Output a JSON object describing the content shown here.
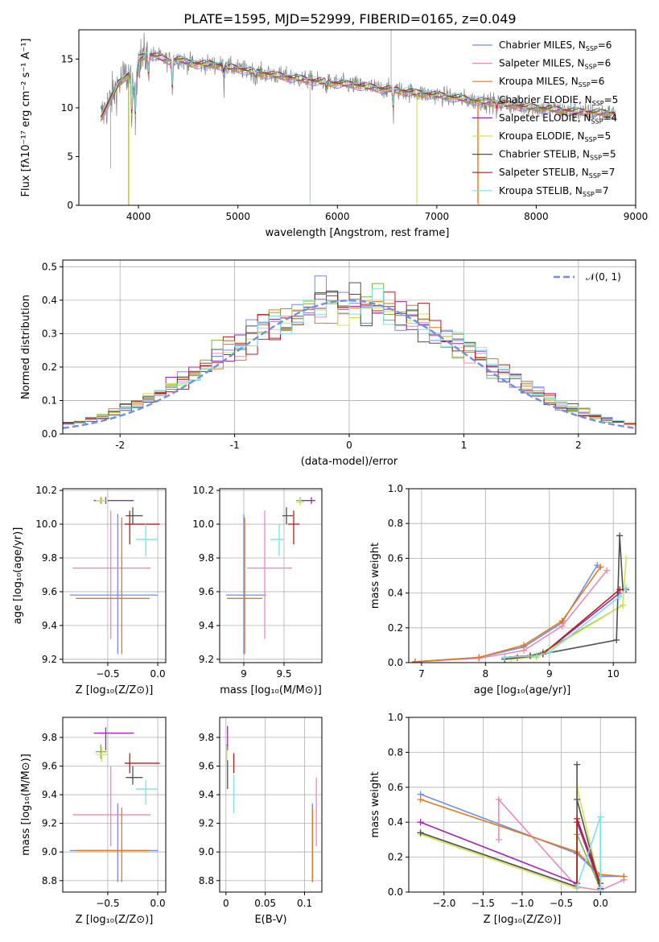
{
  "title": "PLATE=1595, MJD=52999, FIBERID=0165, z=0.049",
  "models": [
    {
      "name": "Chabrier MILES",
      "nssp": "6",
      "color": "#6f8fe0"
    },
    {
      "name": "Salpeter MILES",
      "nssp": "6",
      "color": "#e88bb8"
    },
    {
      "name": "Kroupa MILES",
      "nssp": "6",
      "color": "#e07a1f"
    },
    {
      "name": "Chabrier ELODIE",
      "nssp": "5",
      "color": "#7cb342"
    },
    {
      "name": "Salpeter ELODIE",
      "nssp": "4",
      "color": "#9c27b0"
    },
    {
      "name": "Kroupa ELODIE",
      "nssp": "5",
      "color": "#d4e157"
    },
    {
      "name": "Chabrier STELIB",
      "nssp": "5",
      "color": "#505050"
    },
    {
      "name": "Salpeter STELIB",
      "nssp": "7",
      "color": "#b71c1c"
    },
    {
      "name": "Kroupa STELIB",
      "nssp": "7",
      "color": "#80deea"
    }
  ],
  "chart_data": [
    {
      "id": "spectrum",
      "type": "line",
      "xlabel": "wavelength [Angstrom, rest frame]",
      "ylabel": "Flux [fλ10⁻¹⁷ erg cm⁻² s⁻¹ A⁻¹]",
      "xlim": [
        3400,
        9000
      ],
      "ylim": [
        0,
        18
      ],
      "xticks": [
        4000,
        5000,
        6000,
        7000,
        8000,
        9000
      ],
      "yticks": [
        0,
        5,
        10,
        15
      ],
      "legend_position": "upper-right",
      "data_color": "#808080",
      "continuum": {
        "x": [
          3620,
          3700,
          3800,
          3900,
          3960,
          4000,
          4100,
          4200,
          4300,
          4400,
          4500,
          4600,
          4800,
          5000,
          5200,
          5400,
          5600,
          5800,
          6000,
          6200,
          6400,
          6600,
          6800,
          7000,
          7200,
          7400,
          7600,
          7800,
          8000,
          8200,
          8400,
          8600,
          8800
        ],
        "y": [
          9.0,
          10.5,
          12.5,
          13.5,
          11.5,
          15.0,
          15.5,
          15.2,
          14.8,
          15.0,
          14.6,
          14.5,
          14.4,
          14.0,
          13.6,
          13.3,
          13.0,
          12.7,
          12.5,
          12.3,
          12.0,
          11.8,
          11.5,
          11.3,
          11.0,
          10.7,
          10.5,
          10.2,
          10.0,
          9.8,
          9.6,
          9.5,
          9.4
        ]
      }
    },
    {
      "id": "residuals",
      "type": "histogram",
      "xlabel": "(data-model)/error",
      "ylabel": "Normed distribution",
      "xlim": [
        -2.5,
        2.5
      ],
      "ylim": [
        0,
        0.52
      ],
      "xticks": [
        -2,
        -1,
        0,
        1,
        2
      ],
      "yticks": [
        0.0,
        0.1,
        0.2,
        0.3,
        0.4,
        0.5
      ],
      "bin_width": 0.1,
      "bin_start": -2.5,
      "reference": {
        "label": "𝒩(0, 1)",
        "color": "#6f8fe0"
      }
    },
    {
      "id": "age-vs-Z",
      "type": "errorbar",
      "xlabel": "Z [log₁₀(Z/Z⊙)]",
      "ylabel": "age  [log₁₀(age/yr)]",
      "xlim": [
        -0.95,
        0.08
      ],
      "ylim": [
        9.18,
        10.21
      ],
      "xticks": [
        -0.5,
        0.0
      ],
      "xticklabels": [
        "−0.5",
        "0.0"
      ],
      "yticks": [
        9.2,
        9.4,
        9.6,
        9.8,
        10.0,
        10.2
      ],
      "points": [
        {
          "model": 0,
          "x": -0.4,
          "xerr": [
            0.48,
            0.4
          ],
          "y": 9.58,
          "yerr": [
            0.35,
            0.48
          ]
        },
        {
          "model": 1,
          "x": -0.47,
          "xerr": [
            0.38,
            0.4
          ],
          "y": 9.74,
          "yerr": [
            0.42,
            0.34
          ]
        },
        {
          "model": 2,
          "x": -0.36,
          "xerr": [
            0.46,
            0.28
          ],
          "y": 9.56,
          "yerr": [
            0.33,
            0.48
          ]
        },
        {
          "model": 3,
          "x": -0.57,
          "xerr": [
            0.05,
            0.06
          ],
          "y": 10.14,
          "yerr": [
            0.02,
            0.02
          ]
        },
        {
          "model": 4,
          "x": -0.52,
          "xerr": [
            0.12,
            0.28
          ],
          "y": 10.14,
          "yerr": [
            0.02,
            0.02
          ]
        },
        {
          "model": 5,
          "x": -0.56,
          "xerr": [
            0.06,
            0.06
          ],
          "y": 10.14,
          "yerr": [
            0.02,
            0.02
          ]
        },
        {
          "model": 6,
          "x": -0.25,
          "xerr": [
            0.07,
            0.1
          ],
          "y": 10.05,
          "yerr": [
            0.05,
            0.05
          ]
        },
        {
          "model": 7,
          "x": -0.28,
          "xerr": [
            0.05,
            0.3
          ],
          "y": 10.0,
          "yerr": [
            0.12,
            0.08
          ]
        },
        {
          "model": 8,
          "x": -0.12,
          "xerr": [
            0.1,
            0.12
          ],
          "y": 9.91,
          "yerr": [
            0.1,
            0.09
          ]
        }
      ]
    },
    {
      "id": "age-vs-mass",
      "type": "errorbar",
      "xlabel": "mass [log₁₀(M/M⊙)]",
      "ylabel": "",
      "xlim": [
        8.7,
        9.97
      ],
      "ylim": [
        9.18,
        10.21
      ],
      "xticks": [
        9.0,
        9.5
      ],
      "yticks": [
        9.2,
        9.4,
        9.6,
        9.8,
        10.0,
        10.2
      ],
      "points": [
        {
          "model": 0,
          "x": 9.0,
          "xerr": [
            0.22,
            0.28
          ],
          "y": 9.58,
          "yerr": [
            0.35,
            0.48
          ]
        },
        {
          "model": 1,
          "x": 9.26,
          "xerr": [
            0.22,
            0.34
          ],
          "y": 9.74,
          "yerr": [
            0.42,
            0.34
          ]
        },
        {
          "model": 2,
          "x": 9.01,
          "xerr": [
            0.22,
            0.22
          ],
          "y": 9.56,
          "yerr": [
            0.33,
            0.48
          ]
        },
        {
          "model": 3,
          "x": 9.7,
          "xerr": [
            0.05,
            0.05
          ],
          "y": 10.14,
          "yerr": [
            0.02,
            0.02
          ]
        },
        {
          "model": 4,
          "x": 9.84,
          "xerr": [
            0.12,
            0.05
          ],
          "y": 10.14,
          "yerr": [
            0.02,
            0.02
          ]
        },
        {
          "model": 5,
          "x": 9.7,
          "xerr": [
            0.05,
            0.05
          ],
          "y": 10.13,
          "yerr": [
            0.02,
            0.02
          ]
        },
        {
          "model": 6,
          "x": 9.53,
          "xerr": [
            0.05,
            0.08
          ],
          "y": 10.05,
          "yerr": [
            0.05,
            0.05
          ]
        },
        {
          "model": 7,
          "x": 9.62,
          "xerr": [
            0.07,
            0.07
          ],
          "y": 10.0,
          "yerr": [
            0.12,
            0.08
          ]
        },
        {
          "model": 8,
          "x": 9.44,
          "xerr": [
            0.11,
            0.06
          ],
          "y": 9.91,
          "yerr": [
            0.1,
            0.09
          ]
        }
      ]
    },
    {
      "id": "weight-vs-age",
      "type": "line",
      "xlabel": "age  [log₁₀(age/yr)]",
      "ylabel": "mass weight",
      "xlim": [
        6.8,
        10.35
      ],
      "ylim": [
        0.0,
        1.0
      ],
      "xticks": [
        7,
        8,
        9,
        10
      ],
      "yticks": [
        0.0,
        0.2,
        0.4,
        0.6,
        0.8,
        1.0
      ],
      "series": [
        {
          "model": 0,
          "x": [
            6.9,
            7.9,
            8.6,
            9.2,
            9.75
          ],
          "y": [
            0.005,
            0.03,
            0.09,
            0.23,
            0.56
          ]
        },
        {
          "model": 1,
          "x": [
            6.9,
            7.9,
            8.6,
            9.2,
            9.9
          ],
          "y": [
            0.005,
            0.025,
            0.07,
            0.21,
            0.53
          ]
        },
        {
          "model": 2,
          "x": [
            6.9,
            7.9,
            8.6,
            9.2,
            9.8
          ],
          "y": [
            0.005,
            0.03,
            0.1,
            0.24,
            0.55
          ]
        },
        {
          "model": 3,
          "x": [
            8.3,
            8.7,
            8.9,
            10.15
          ],
          "y": [
            0.03,
            0.04,
            0.06,
            0.33
          ]
        },
        {
          "model": 4,
          "x": [
            8.5,
            8.9,
            10.1
          ],
          "y": [
            0.03,
            0.05,
            0.4
          ]
        },
        {
          "model": 5,
          "x": [
            8.4,
            8.8,
            10.15,
            10.2
          ],
          "y": [
            0.02,
            0.03,
            0.33,
            0.6
          ]
        },
        {
          "model": 6,
          "x": [
            8.3,
            8.8,
            8.9,
            10.05,
            10.1,
            10.15
          ],
          "y": [
            0.02,
            0.04,
            0.05,
            0.13,
            0.73,
            0.42
          ]
        },
        {
          "model": 7,
          "x": [
            8.3,
            8.7,
            8.9,
            10.1,
            10.2
          ],
          "y": [
            0.03,
            0.04,
            0.05,
            0.42,
            0.42
          ]
        },
        {
          "model": 8,
          "x": [
            8.3,
            8.8,
            9.0,
            10.1,
            10.2
          ],
          "y": [
            0.03,
            0.04,
            0.06,
            0.38,
            0.43
          ]
        }
      ]
    },
    {
      "id": "mass-vs-Z",
      "type": "errorbar",
      "xlabel": "Z [log₁₀(Z/Z⊙)]",
      "ylabel": "mass [log₁₀(M/M⊙)]",
      "xlim": [
        -0.95,
        0.08
      ],
      "ylim": [
        8.72,
        9.94
      ],
      "xticks": [
        -0.5,
        0.0
      ],
      "xticklabels": [
        "−0.5",
        "0.0"
      ],
      "yticks": [
        8.8,
        9.0,
        9.2,
        9.4,
        9.6,
        9.8
      ],
      "points": [
        {
          "model": 0,
          "x": -0.4,
          "xerr": [
            0.48,
            0.4
          ],
          "y": 9.01,
          "yerr": [
            0.22,
            0.33
          ]
        },
        {
          "model": 1,
          "x": -0.47,
          "xerr": [
            0.38,
            0.4
          ],
          "y": 9.26,
          "yerr": [
            0.22,
            0.34
          ]
        },
        {
          "model": 2,
          "x": -0.36,
          "xerr": [
            0.46,
            0.28
          ],
          "y": 9.01,
          "yerr": [
            0.22,
            0.3
          ]
        },
        {
          "model": 3,
          "x": -0.57,
          "xerr": [
            0.05,
            0.06
          ],
          "y": 9.7,
          "yerr": [
            0.05,
            0.05
          ]
        },
        {
          "model": 4,
          "x": -0.52,
          "xerr": [
            0.12,
            0.28
          ],
          "y": 9.83,
          "yerr": [
            0.12,
            0.04
          ]
        },
        {
          "model": 5,
          "x": -0.56,
          "xerr": [
            0.06,
            0.06
          ],
          "y": 9.68,
          "yerr": [
            0.05,
            0.05
          ]
        },
        {
          "model": 6,
          "x": -0.25,
          "xerr": [
            0.07,
            0.1
          ],
          "y": 9.52,
          "yerr": [
            0.05,
            0.08
          ]
        },
        {
          "model": 7,
          "x": -0.28,
          "xerr": [
            0.05,
            0.3
          ],
          "y": 9.62,
          "yerr": [
            0.07,
            0.07
          ]
        },
        {
          "model": 8,
          "x": -0.12,
          "xerr": [
            0.1,
            0.12
          ],
          "y": 9.44,
          "yerr": [
            0.11,
            0.06
          ]
        }
      ]
    },
    {
      "id": "mass-vs-ebv",
      "type": "errorbar",
      "xlabel": "E(B-V)",
      "ylabel": "",
      "xlim": [
        -0.008,
        0.122
      ],
      "ylim": [
        8.72,
        9.94
      ],
      "xticks": [
        0.0,
        0.05,
        0.1
      ],
      "yticks": [
        8.8,
        9.0,
        9.2,
        9.4,
        9.6,
        9.8
      ],
      "points": [
        {
          "model": 0,
          "x": 0.11,
          "xerr": [
            0,
            0
          ],
          "y": 9.01,
          "yerr": [
            0.22,
            0.33
          ]
        },
        {
          "model": 1,
          "x": 0.115,
          "xerr": [
            0,
            0
          ],
          "y": 9.26,
          "yerr": [
            0.22,
            0.26
          ]
        },
        {
          "model": 2,
          "x": 0.11,
          "xerr": [
            0,
            0
          ],
          "y": 9.01,
          "yerr": [
            0.22,
            0.3
          ]
        },
        {
          "model": 3,
          "x": 0.001,
          "xerr": [
            0,
            0
          ],
          "y": 9.7,
          "yerr": [
            0.05,
            0.05
          ]
        },
        {
          "model": 4,
          "x": 0.002,
          "xerr": [
            0,
            0
          ],
          "y": 9.83,
          "yerr": [
            0.12,
            0.05
          ]
        },
        {
          "model": 5,
          "x": 0.001,
          "xerr": [
            0,
            0
          ],
          "y": 9.68,
          "yerr": [
            0.05,
            0.06
          ]
        },
        {
          "model": 6,
          "x": 0.002,
          "xerr": [
            0,
            0
          ],
          "y": 9.52,
          "yerr": [
            0.08,
            0.12
          ]
        },
        {
          "model": 7,
          "x": 0.01,
          "xerr": [
            0,
            0
          ],
          "y": 9.62,
          "yerr": [
            0.07,
            0.07
          ]
        },
        {
          "model": 8,
          "x": 0.01,
          "xerr": [
            0,
            0
          ],
          "y": 9.44,
          "yerr": [
            0.17,
            0.1
          ]
        }
      ]
    },
    {
      "id": "weight-vs-Z",
      "type": "line",
      "xlabel": "Z [log₁₀(Z/Z⊙)]",
      "ylabel": "mass weight",
      "xlim": [
        -2.45,
        0.45
      ],
      "ylim": [
        0.0,
        1.0
      ],
      "xticks": [
        -2.0,
        -1.5,
        -1.0,
        -0.5,
        0.0
      ],
      "xticklabels": [
        "−2.0",
        "−1.5",
        "−1.0",
        "−0.5",
        "0.0"
      ],
      "yticks": [
        0.0,
        0.2,
        0.4,
        0.6,
        0.8,
        1.0
      ],
      "series": [
        {
          "model": 0,
          "x": [
            -2.3,
            -0.3,
            0.0,
            0.3
          ],
          "y": [
            0.56,
            0.22,
            0.09,
            0.09
          ]
        },
        {
          "model": 1,
          "x": [
            -1.3,
            -1.3,
            -0.3,
            0.0,
            0.3
          ],
          "y": [
            0.3,
            0.53,
            0.03,
            0.01,
            0.07
          ]
        },
        {
          "model": 2,
          "x": [
            -2.3,
            -0.3,
            0.0,
            0.3
          ],
          "y": [
            0.53,
            0.23,
            0.1,
            0.09
          ]
        },
        {
          "model": 3,
          "x": [
            -2.3,
            -0.3,
            -0.3,
            0.0
          ],
          "y": [
            0.34,
            0.03,
            0.33,
            0.02
          ]
        },
        {
          "model": 4,
          "x": [
            -2.3,
            -0.3,
            -0.3,
            0.0
          ],
          "y": [
            0.4,
            0.05,
            0.4,
            0.03
          ]
        },
        {
          "model": 5,
          "x": [
            -2.3,
            -0.3,
            -0.3,
            0.0
          ],
          "y": [
            0.33,
            0.02,
            0.6,
            0.03
          ]
        },
        {
          "model": 6,
          "x": [
            -2.3,
            -0.3,
            -0.3,
            -0.3,
            0.0
          ],
          "y": [
            0.34,
            0.03,
            0.73,
            0.53,
            0.02
          ]
        },
        {
          "model": 7,
          "x": [
            -0.3,
            -0.3,
            0.0
          ],
          "y": [
            0.05,
            0.42,
            0.05
          ]
        },
        {
          "model": 8,
          "x": [
            -0.3,
            0.0,
            0.0
          ],
          "y": [
            0.03,
            0.43,
            0.01
          ]
        }
      ]
    }
  ]
}
